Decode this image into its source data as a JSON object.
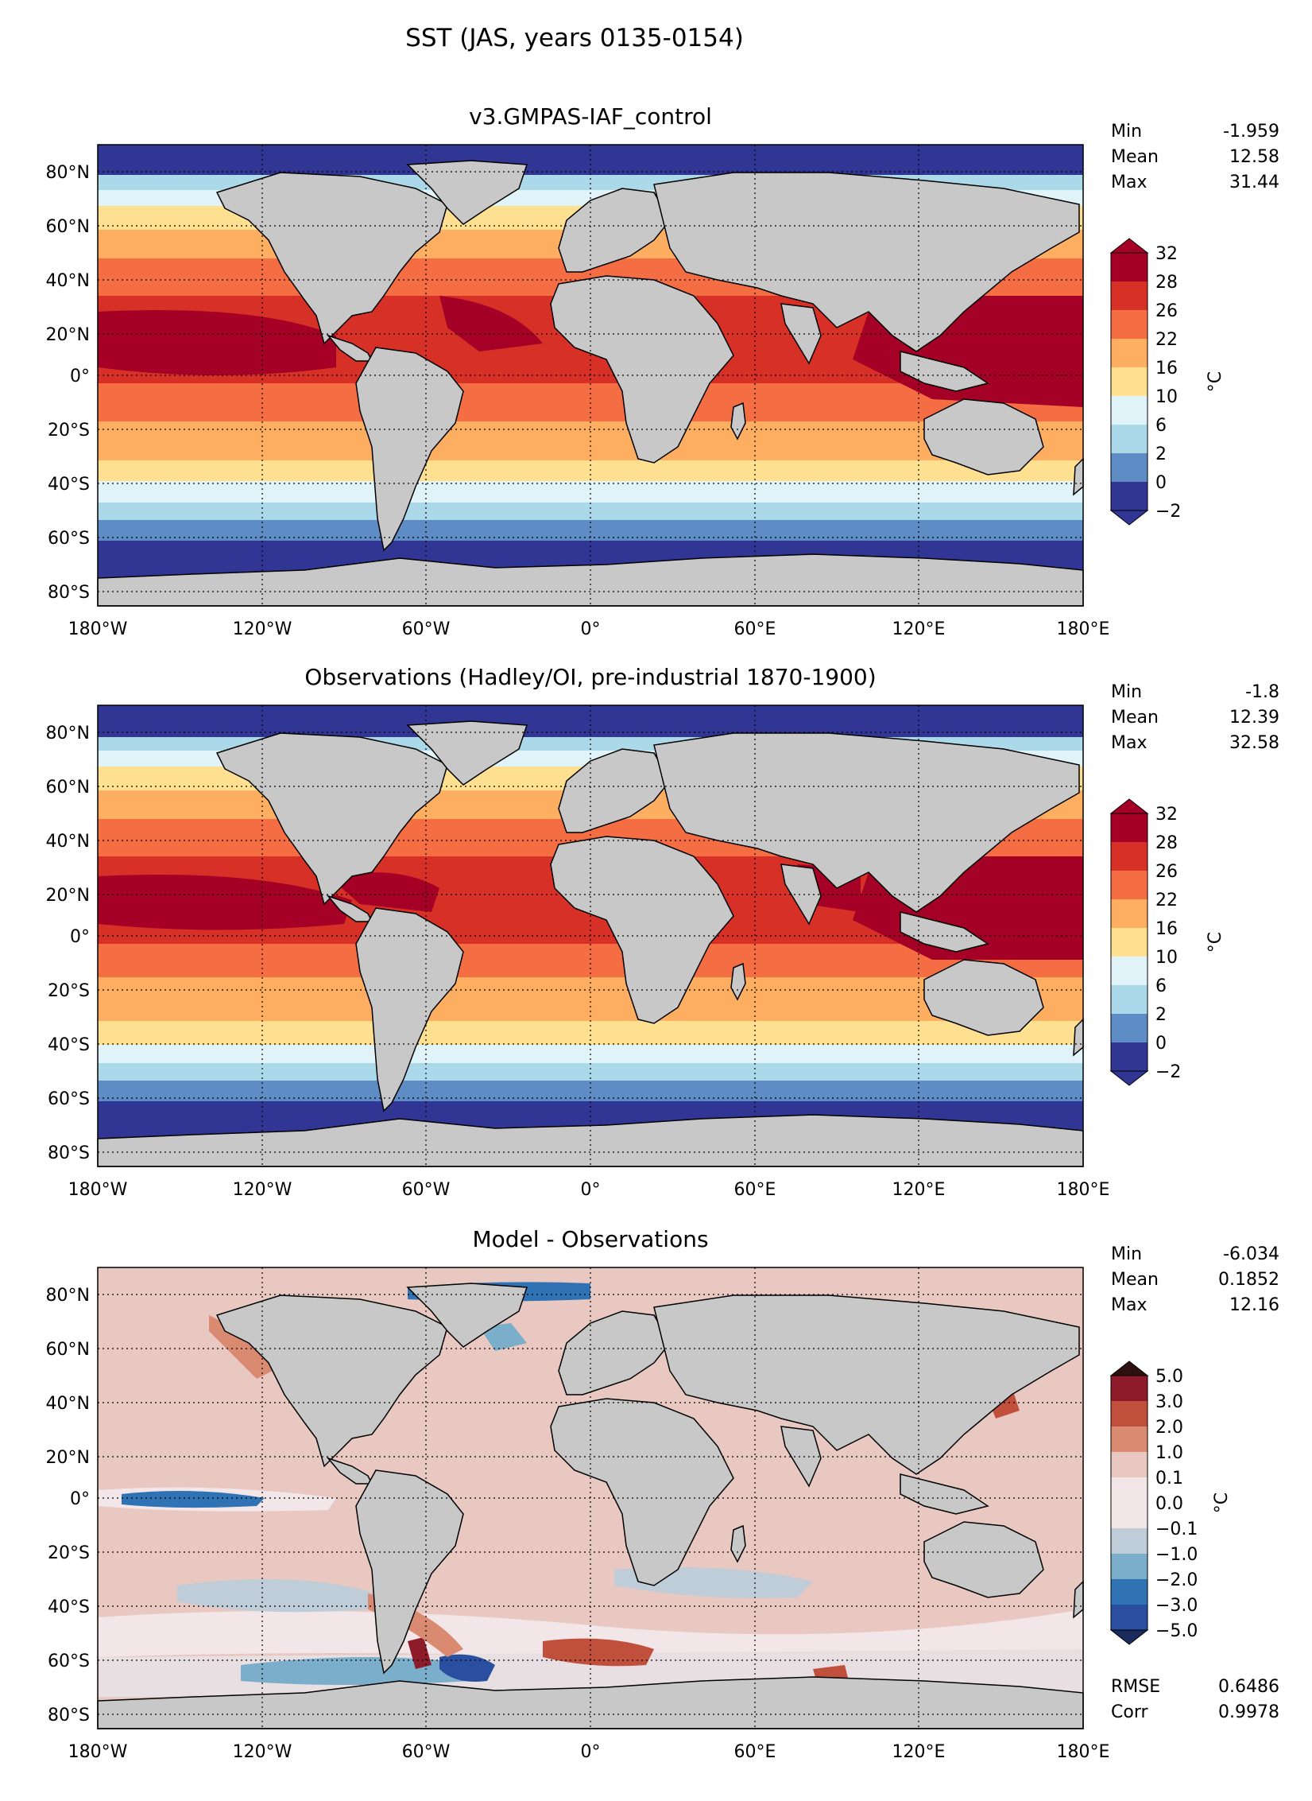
{
  "figure": {
    "title": "SST (JAS, years 0135-0154)"
  },
  "axes_labels": {
    "lat_ticks": [
      "80°N",
      "60°N",
      "40°N",
      "20°N",
      "0°",
      "20°S",
      "40°S",
      "60°S",
      "80°S"
    ],
    "lon_ticks": [
      "180°W",
      "120°W",
      "60°W",
      "0°",
      "60°E",
      "120°E",
      "180°E"
    ]
  },
  "colors": {
    "land": "#c8c8c8",
    "frame": "#000000",
    "sst_bins": [
      "#313695",
      "#5e8cc4",
      "#abd9e9",
      "#e0f3f8",
      "#fee090",
      "#fdae61",
      "#f46d43",
      "#d73027",
      "#a50026"
    ],
    "diff_bins": [
      "#1a2a5c",
      "#2a4fa0",
      "#2f73b5",
      "#7aaeca",
      "#bfcdd9",
      "#f2e6e8",
      "#e8c8c0",
      "#d98a70",
      "#c0503c",
      "#8e1b2a",
      "#2f1010"
    ]
  },
  "panels": [
    {
      "title": "v3.GMPAS-IAF_control",
      "stats": [
        {
          "label": "Min",
          "value": "-1.959"
        },
        {
          "label": "Mean",
          "value": "12.58"
        },
        {
          "label": "Max",
          "value": "31.44"
        }
      ],
      "colorbar": {
        "unit": "°C",
        "ticks": [
          "32",
          "28",
          "26",
          "22",
          "16",
          "10",
          "6",
          "2",
          "0",
          "−2"
        ]
      }
    },
    {
      "title": "Observations (Hadley/OI, pre-industrial 1870-1900)",
      "stats": [
        {
          "label": "Min",
          "value": "-1.8"
        },
        {
          "label": "Mean",
          "value": "12.39"
        },
        {
          "label": "Max",
          "value": "32.58"
        }
      ],
      "colorbar": {
        "unit": "°C",
        "ticks": [
          "32",
          "28",
          "26",
          "22",
          "16",
          "10",
          "6",
          "2",
          "0",
          "−2"
        ]
      }
    },
    {
      "title": "Model - Observations",
      "stats": [
        {
          "label": "Min",
          "value": "-6.034"
        },
        {
          "label": "Mean",
          "value": "0.1852"
        },
        {
          "label": "Max",
          "value": "12.16"
        }
      ],
      "colorbar": {
        "unit": "°C",
        "ticks": [
          "5.0",
          "3.0",
          "2.0",
          "1.0",
          "0.1",
          "0.0",
          "−0.1",
          "−1.0",
          "−2.0",
          "−3.0",
          "−5.0"
        ]
      },
      "extra_stats": [
        {
          "label": "RMSE",
          "value": "0.6486"
        },
        {
          "label": "Corr",
          "value": "0.9978"
        }
      ]
    }
  ]
}
